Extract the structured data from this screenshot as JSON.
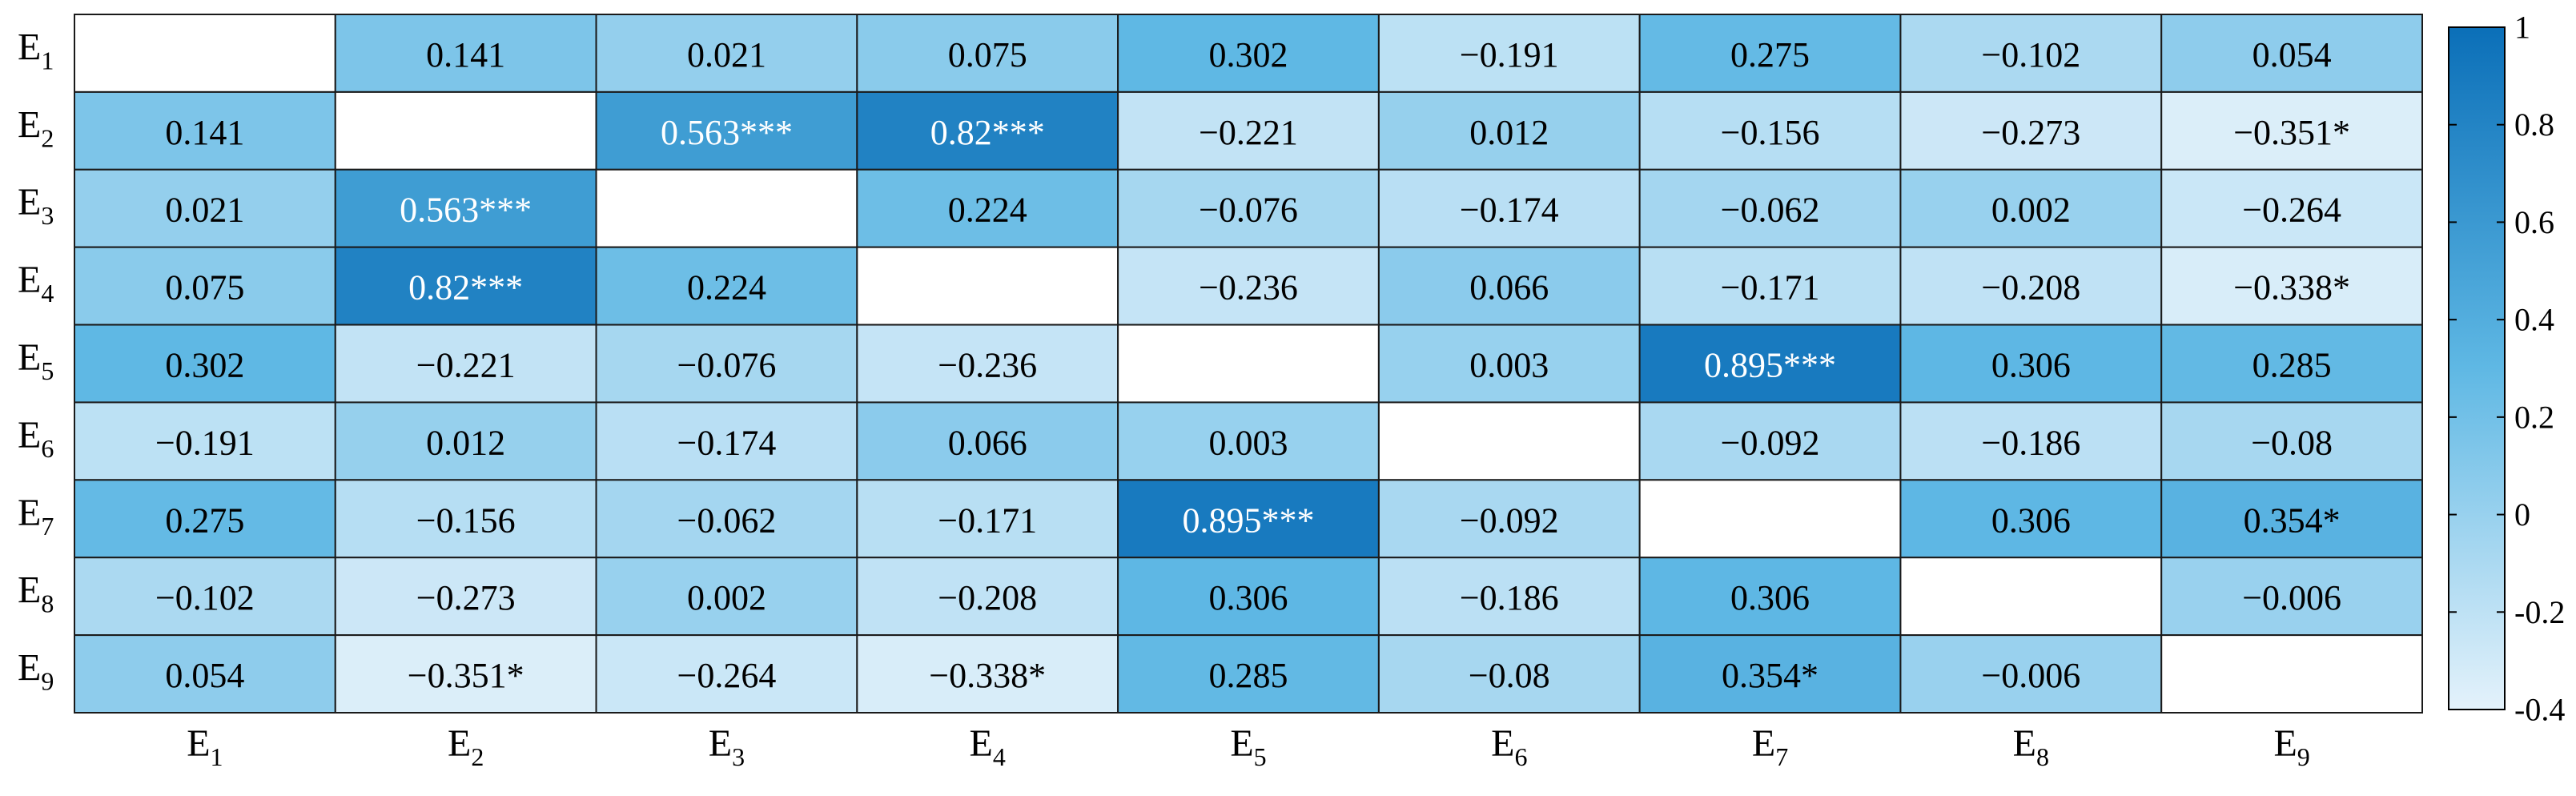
{
  "chart_data": {
    "type": "heatmap",
    "title": "",
    "variables": [
      "E1",
      "E2",
      "E3",
      "E4",
      "E5",
      "E6",
      "E7",
      "E8",
      "E9"
    ],
    "row_labels": [
      {
        "base": "E",
        "sub": "1"
      },
      {
        "base": "E",
        "sub": "2"
      },
      {
        "base": "E",
        "sub": "3"
      },
      {
        "base": "E",
        "sub": "4"
      },
      {
        "base": "E",
        "sub": "5"
      },
      {
        "base": "E",
        "sub": "6"
      },
      {
        "base": "E",
        "sub": "7"
      },
      {
        "base": "E",
        "sub": "8"
      },
      {
        "base": "E",
        "sub": "9"
      }
    ],
    "col_labels": [
      {
        "base": "E",
        "sub": "1"
      },
      {
        "base": "E",
        "sub": "2"
      },
      {
        "base": "E",
        "sub": "3"
      },
      {
        "base": "E",
        "sub": "4"
      },
      {
        "base": "E",
        "sub": "5"
      },
      {
        "base": "E",
        "sub": "6"
      },
      {
        "base": "E",
        "sub": "7"
      },
      {
        "base": "E",
        "sub": "8"
      },
      {
        "base": "E",
        "sub": "9"
      }
    ],
    "values": [
      [
        null,
        0.141,
        0.021,
        0.075,
        0.302,
        -0.191,
        0.275,
        -0.102,
        0.054
      ],
      [
        0.141,
        null,
        0.563,
        0.82,
        -0.221,
        0.012,
        -0.156,
        -0.273,
        -0.351
      ],
      [
        0.021,
        0.563,
        null,
        0.224,
        -0.076,
        -0.174,
        -0.062,
        0.002,
        -0.264
      ],
      [
        0.075,
        0.82,
        0.224,
        null,
        -0.236,
        0.066,
        -0.171,
        -0.208,
        -0.338
      ],
      [
        0.302,
        -0.221,
        -0.076,
        -0.236,
        null,
        0.003,
        0.895,
        0.306,
        0.285
      ],
      [
        -0.191,
        0.012,
        -0.174,
        0.066,
        0.003,
        null,
        -0.092,
        -0.186,
        -0.08
      ],
      [
        0.275,
        -0.156,
        -0.062,
        -0.171,
        0.895,
        -0.092,
        null,
        0.306,
        0.354
      ],
      [
        -0.102,
        -0.273,
        0.002,
        -0.208,
        0.306,
        -0.186,
        0.306,
        null,
        -0.006
      ],
      [
        0.054,
        -0.351,
        -0.264,
        -0.338,
        0.285,
        -0.08,
        0.354,
        -0.006,
        null
      ]
    ],
    "labels": [
      [
        "",
        "0.141",
        "0.021",
        "0.075",
        "0.302",
        "−0.191",
        "0.275",
        "−0.102",
        "0.054"
      ],
      [
        "0.141",
        "",
        "0.563***",
        "0.82***",
        "−0.221",
        "0.012",
        "−0.156",
        "−0.273",
        "−0.351*"
      ],
      [
        "0.021",
        "0.563***",
        "",
        "0.224",
        "−0.076",
        "−0.174",
        "−0.062",
        "0.002",
        "−0.264"
      ],
      [
        "0.075",
        "0.82***",
        "0.224",
        "",
        "−0.236",
        "0.066",
        "−0.171",
        "−0.208",
        "−0.338*"
      ],
      [
        "0.302",
        "−0.221",
        "−0.076",
        "−0.236",
        "",
        "0.003",
        "0.895***",
        "0.306",
        "0.285"
      ],
      [
        "−0.191",
        "0.012",
        "−0.174",
        "0.066",
        "0.003",
        "",
        "−0.092",
        "−0.186",
        "−0.08"
      ],
      [
        "0.275",
        "−0.156",
        "−0.062",
        "−0.171",
        "0.895***",
        "−0.092",
        "",
        "0.306",
        "0.354*"
      ],
      [
        "−0.102",
        "−0.273",
        "0.002",
        "−0.208",
        "0.306",
        "−0.186",
        "0.306",
        "",
        "−0.006"
      ],
      [
        "0.054",
        "−0.351*",
        "−0.264",
        "−0.338*",
        "0.285",
        "−0.08",
        "0.354*",
        "−0.006",
        ""
      ]
    ],
    "diagonal": "blank",
    "colorbar": {
      "range": [
        -0.4,
        1
      ],
      "ticks": [
        1,
        0.8,
        0.6,
        0.4,
        0.2,
        0,
        -0.2,
        -0.4
      ],
      "tick_labels": [
        "1",
        "0.8",
        "0.6",
        "0.4",
        "0.2",
        "0",
        "-0.2",
        "-0.4"
      ],
      "color_low": "#e4f2fb",
      "color_mid": "#5fb8e4",
      "color_high": "#0b6fb8"
    },
    "text_color_dark": "#000000",
    "text_color_light": "#ffffff",
    "light_text_threshold": 0.5
  }
}
